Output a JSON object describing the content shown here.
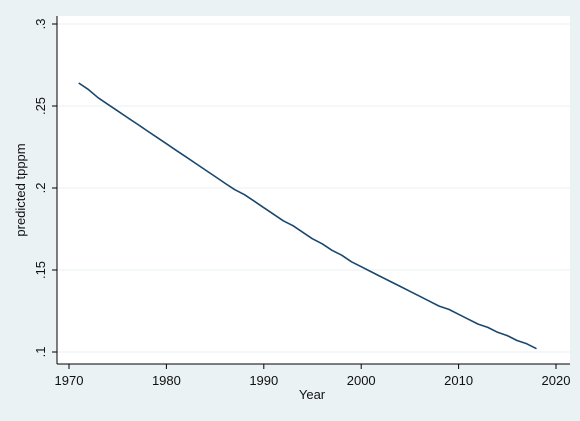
{
  "colors": {
    "background": "#eaf2f3",
    "plot_region": "#ffffff",
    "gridline": "#eaf2f3",
    "axis": "#000000",
    "line": "#1a476f"
  },
  "chart_data": {
    "type": "line",
    "xlabel": "Year",
    "ylabel": "predicted tpppm",
    "xlim": [
      1968.5,
      2021.5
    ],
    "ylim": [
      0.1,
      0.3
    ],
    "x_ticks": [
      1970,
      1980,
      1990,
      2000,
      2010,
      2020
    ],
    "x_tick_labels": [
      "1970",
      "1980",
      "1990",
      "2000",
      "2010",
      "2020"
    ],
    "y_ticks": [
      0.1,
      0.15,
      0.2,
      0.25,
      0.3
    ],
    "y_tick_labels": [
      ".1",
      ".15",
      ".2",
      ".25",
      ".3"
    ],
    "grid": true,
    "series": [
      {
        "x": [
          1971,
          1972,
          1973,
          1974,
          1975,
          1976,
          1977,
          1978,
          1979,
          1980,
          1981,
          1982,
          1983,
          1984,
          1985,
          1986,
          1987,
          1988,
          1989,
          1990,
          1991,
          1992,
          1993,
          1994,
          1995,
          1996,
          1997,
          1998,
          1999,
          2000,
          2001,
          2002,
          2003,
          2004,
          2005,
          2006,
          2007,
          2008,
          2009,
          2010,
          2011,
          2012,
          2013,
          2014,
          2015,
          2016,
          2017,
          2018
        ],
        "y": [
          0.264,
          0.26,
          0.255,
          0.251,
          0.247,
          0.243,
          0.239,
          0.235,
          0.231,
          0.227,
          0.223,
          0.219,
          0.215,
          0.211,
          0.207,
          0.203,
          0.199,
          0.196,
          0.192,
          0.188,
          0.184,
          0.18,
          0.177,
          0.173,
          0.169,
          0.166,
          0.162,
          0.159,
          0.155,
          0.152,
          0.149,
          0.146,
          0.143,
          0.14,
          0.137,
          0.134,
          0.131,
          0.128,
          0.126,
          0.123,
          0.12,
          0.117,
          0.115,
          0.112,
          0.11,
          0.107,
          0.105,
          0.102
        ]
      }
    ]
  }
}
